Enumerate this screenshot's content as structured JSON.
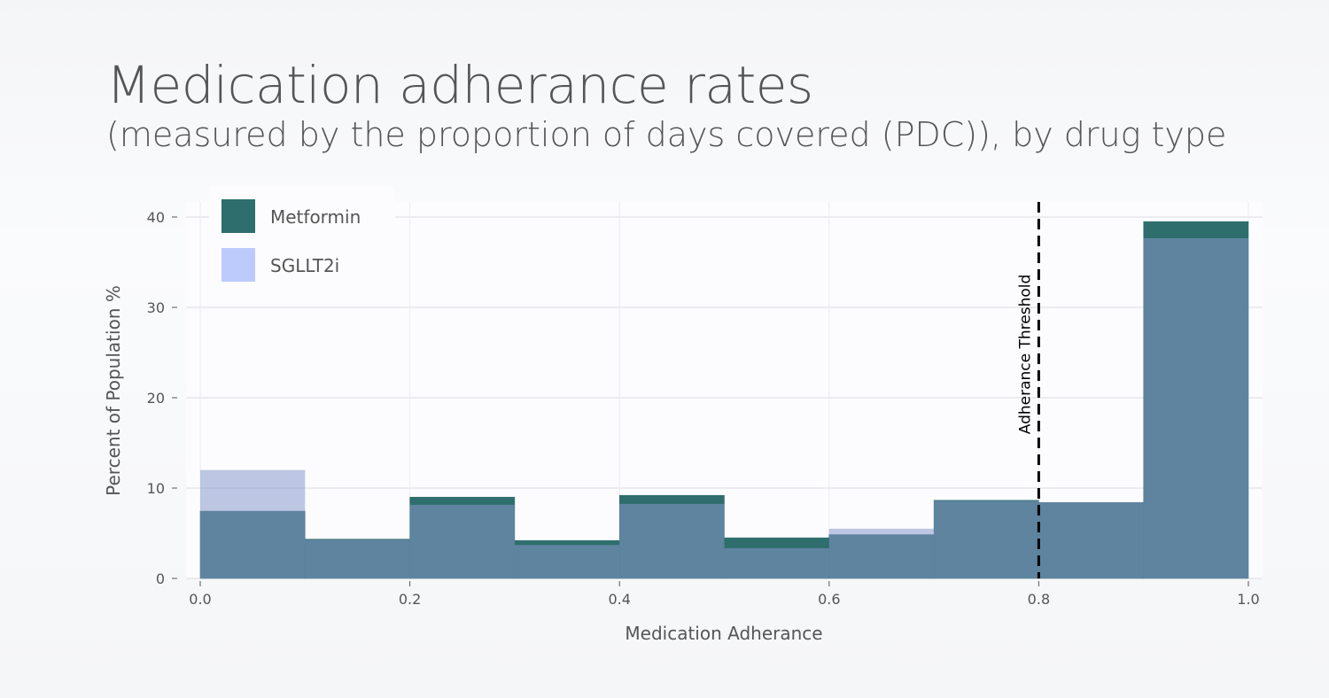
{
  "chart_data": {
    "type": "bar",
    "title": "Medication adherance rates",
    "subtitle": "(measured by the proportion of days covered (PDC)), by drug type",
    "xlabel": "Medication Adherance",
    "ylabel": "Percent of Population %",
    "xlim": [
      0,
      1.0
    ],
    "ylim": [
      0,
      40
    ],
    "xticks": [
      "0.0",
      "0.2",
      "0.4",
      "0.6",
      "0.8",
      "1.0"
    ],
    "yticks": [
      "0",
      "10",
      "20",
      "30",
      "40"
    ],
    "bin_edges": [
      0,
      0.1,
      0.2,
      0.3,
      0.4,
      0.5,
      0.6,
      0.7,
      0.8,
      0.9,
      1.0
    ],
    "grid": true,
    "legend_position": "top-left",
    "series": [
      {
        "name": "Metformin",
        "color": "#2e6e6c",
        "values": [
          7.45,
          4.35,
          9.0,
          4.2,
          9.2,
          4.5,
          4.85,
          8.65,
          8.4,
          39.5
        ]
      },
      {
        "name": "SGLLT2i",
        "color": "#bccbfc",
        "values": [
          12.0,
          4.3,
          8.15,
          3.7,
          8.25,
          3.35,
          5.5,
          8.6,
          8.45,
          37.65
        ]
      }
    ],
    "annotation": {
      "label": "Adherance Threshold",
      "x": 0.8
    }
  }
}
